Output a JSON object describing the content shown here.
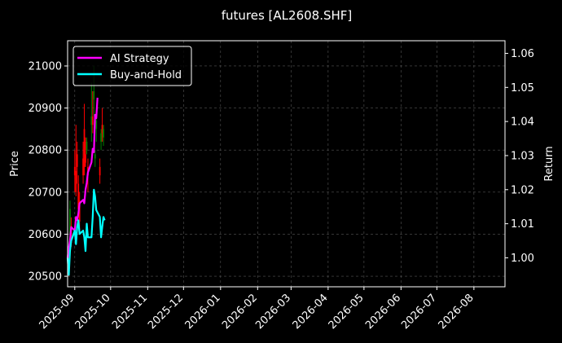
{
  "chart_data": {
    "type": "line",
    "title": "futures [AL2608.SHF]",
    "ylabel": "Price",
    "y2label": "Return",
    "ylim": [
      20475,
      21060
    ],
    "y2lim": [
      0.9915,
      1.0637
    ],
    "yticks": [
      20500,
      20600,
      20700,
      20800,
      20900,
      21000
    ],
    "y2ticks": [
      "1.00",
      "1.01",
      "1.02",
      "1.03",
      "1.04",
      "1.05",
      "1.06"
    ],
    "y2tick_values": [
      1.0,
      1.01,
      1.02,
      1.03,
      1.04,
      1.05,
      1.06
    ],
    "xlim": [
      "2025-08-26",
      "2026-08-27"
    ],
    "xticks": [
      "2025-09",
      "2025-10",
      "2025-11",
      "2025-12",
      "2026-01",
      "2026-02",
      "2026-03",
      "2026-04",
      "2026-05",
      "2026-06",
      "2026-07",
      "2026-08"
    ],
    "xtick_dates": [
      "2025-09-01",
      "2025-10-01",
      "2025-11-01",
      "2025-12-01",
      "2026-01-01",
      "2026-02-01",
      "2026-03-01",
      "2026-04-01",
      "2026-05-01",
      "2026-06-01",
      "2026-07-01",
      "2026-08-01"
    ],
    "grid": true,
    "legend_position": "top-left",
    "colors": {
      "background": "#000000",
      "up": "#008000",
      "down": "#ff0000",
      "strategy": "#ff00ff",
      "hold": "#00ffff",
      "grid": "#555555"
    },
    "candles": [
      {
        "date": "2025-08-27",
        "open": 20540,
        "high": 20560,
        "low": 20500,
        "close": 20520
      },
      {
        "date": "2025-08-28",
        "open": 20600,
        "high": 20680,
        "low": 20590,
        "close": 20660
      },
      {
        "date": "2025-08-29",
        "open": 20620,
        "high": 20640,
        "low": 20570,
        "close": 20580
      },
      {
        "date": "2025-09-01",
        "open": 20760,
        "high": 20800,
        "low": 20700,
        "close": 20740
      },
      {
        "date": "2025-09-02",
        "open": 20750,
        "high": 20860,
        "low": 20690,
        "close": 20700
      },
      {
        "date": "2025-09-03",
        "open": 20790,
        "high": 20820,
        "low": 20720,
        "close": 20760
      },
      {
        "date": "2025-09-04",
        "open": 20720,
        "high": 20740,
        "low": 20640,
        "close": 20660
      },
      {
        "date": "2025-09-05",
        "open": 20680,
        "high": 20700,
        "low": 20610,
        "close": 20630
      },
      {
        "date": "2025-09-08",
        "open": 20780,
        "high": 20820,
        "low": 20720,
        "close": 20740
      },
      {
        "date": "2025-09-09",
        "open": 20850,
        "high": 20910,
        "low": 20740,
        "close": 20760
      },
      {
        "date": "2025-09-10",
        "open": 20790,
        "high": 20830,
        "low": 20760,
        "close": 20770
      },
      {
        "date": "2025-09-11",
        "open": 20800,
        "high": 20830,
        "low": 20790,
        "close": 20820
      },
      {
        "date": "2025-09-12",
        "open": 20760,
        "high": 20780,
        "low": 20700,
        "close": 20740
      },
      {
        "date": "2025-09-15",
        "open": 20860,
        "high": 20960,
        "low": 20820,
        "close": 20880
      },
      {
        "date": "2025-09-16",
        "open": 20880,
        "high": 20940,
        "low": 20840,
        "close": 20860
      },
      {
        "date": "2025-09-17",
        "open": 20920,
        "high": 21000,
        "low": 20880,
        "close": 20940
      },
      {
        "date": "2025-09-18",
        "open": 20780,
        "high": 20800,
        "low": 20760,
        "close": 20790
      },
      {
        "date": "2025-09-19",
        "open": 20850,
        "high": 20880,
        "low": 20820,
        "close": 20870
      },
      {
        "date": "2025-09-22",
        "open": 20760,
        "high": 20780,
        "low": 20720,
        "close": 20740
      },
      {
        "date": "2025-09-23",
        "open": 20820,
        "high": 20850,
        "low": 20800,
        "close": 20840
      },
      {
        "date": "2025-09-24",
        "open": 20860,
        "high": 20900,
        "low": 20820,
        "close": 20840
      },
      {
        "date": "2025-09-25",
        "open": 20830,
        "high": 20860,
        "low": 20810,
        "close": 20850
      }
    ],
    "series": [
      {
        "name": "AI Strategy",
        "x": [
          "2025-08-26",
          "2025-08-27",
          "2025-08-28",
          "2025-08-29",
          "2025-09-01",
          "2025-09-02",
          "2025-09-03",
          "2025-09-04",
          "2025-09-05",
          "2025-09-08",
          "2025-09-09",
          "2025-09-10",
          "2025-09-11",
          "2025-09-12",
          "2025-09-15",
          "2025-09-16",
          "2025-09-17",
          "2025-09-18",
          "2025-09-19",
          "2025-09-20"
        ],
        "values": [
          1.0,
          1.003,
          1.005,
          1.009,
          1.008,
          1.012,
          1.011,
          1.013,
          1.016,
          1.017,
          1.016,
          1.02,
          1.022,
          1.025,
          1.028,
          1.032,
          1.031,
          1.042,
          1.041,
          1.047
        ]
      },
      {
        "name": "Buy-and-Hold",
        "x": [
          "2025-08-26",
          "2025-08-27",
          "2025-08-28",
          "2025-08-29",
          "2025-09-01",
          "2025-09-02",
          "2025-09-03",
          "2025-09-04",
          "2025-09-05",
          "2025-09-08",
          "2025-09-09",
          "2025-09-10",
          "2025-09-11",
          "2025-09-12",
          "2025-09-15",
          "2025-09-16",
          "2025-09-17",
          "2025-09-18",
          "2025-09-19",
          "2025-09-22",
          "2025-09-23",
          "2025-09-24",
          "2025-09-25",
          "2025-09-26"
        ],
        "values": [
          1.0,
          0.995,
          1.002,
          1.005,
          1.008,
          1.004,
          1.009,
          1.011,
          1.007,
          1.008,
          1.006,
          1.002,
          1.01,
          1.006,
          1.006,
          1.012,
          1.02,
          1.018,
          1.014,
          1.012,
          1.006,
          1.009,
          1.012,
          1.011
        ]
      }
    ]
  }
}
